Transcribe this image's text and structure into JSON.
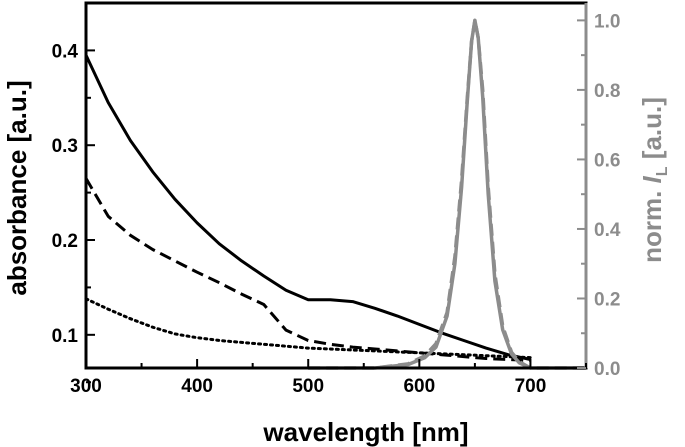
{
  "chart_data": {
    "type": "line",
    "x_axis": {
      "label": "wavelength [nm]",
      "range": [
        300,
        750
      ],
      "ticks": [
        300,
        400,
        500,
        600,
        700
      ],
      "tick_labels": [
        "300",
        "400",
        "500",
        "600",
        "700"
      ]
    },
    "y_axis_left": {
      "label": "absorbance [a.u.]",
      "range": [
        0.065,
        0.45
      ],
      "ticks": [
        0.1,
        0.2,
        0.3,
        0.4
      ],
      "tick_labels": [
        "0.1",
        "0.2",
        "0.3",
        "0.4"
      ],
      "color": "#000000"
    },
    "y_axis_right": {
      "label_main": "norm. ",
      "label_italic": "I",
      "label_subscript": "L",
      "label_tail": " [a.u.]",
      "range": [
        0.0,
        1.05
      ],
      "ticks": [
        0.0,
        0.2,
        0.4,
        0.6,
        0.8,
        1.0
      ],
      "tick_labels": [
        "0.0",
        "0.2",
        "0.4",
        "0.6",
        "0.8",
        "1.0"
      ],
      "color": "#8c8c8c"
    },
    "series": [
      {
        "axis": "left",
        "style": "solid",
        "color": "#000000",
        "x": [
          300,
          320,
          340,
          360,
          380,
          400,
          420,
          440,
          460,
          480,
          500,
          520,
          540,
          560,
          580,
          600,
          620,
          640,
          660,
          680,
          700
        ],
        "y": [
          0.395,
          0.345,
          0.305,
          0.272,
          0.243,
          0.218,
          0.196,
          0.178,
          0.162,
          0.147,
          0.137,
          0.137,
          0.135,
          0.128,
          0.12,
          0.111,
          0.102,
          0.094,
          0.086,
          0.079,
          0.074
        ]
      },
      {
        "axis": "left",
        "style": "dashed",
        "color": "#000000",
        "x": [
          300,
          320,
          340,
          360,
          380,
          400,
          420,
          440,
          460,
          480,
          500,
          520,
          540,
          560,
          580,
          600,
          620,
          640,
          660,
          680,
          700
        ],
        "y": [
          0.265,
          0.225,
          0.205,
          0.19,
          0.178,
          0.166,
          0.155,
          0.143,
          0.132,
          0.105,
          0.094,
          0.09,
          0.087,
          0.085,
          0.083,
          0.081,
          0.079,
          0.077,
          0.075,
          0.074,
          0.073
        ]
      },
      {
        "axis": "left",
        "style": "dotted",
        "color": "#000000",
        "x": [
          300,
          320,
          340,
          360,
          380,
          400,
          420,
          440,
          460,
          480,
          500,
          520,
          540,
          560,
          580,
          600,
          620,
          640,
          660,
          680,
          700
        ],
        "y": [
          0.138,
          0.127,
          0.117,
          0.108,
          0.101,
          0.097,
          0.094,
          0.092,
          0.09,
          0.088,
          0.086,
          0.085,
          0.084,
          0.083,
          0.082,
          0.081,
          0.08,
          0.079,
          0.078,
          0.077,
          0.076
        ]
      },
      {
        "axis": "right",
        "style": "solid",
        "color": "#8c8c8c",
        "x": [
          500,
          560,
          590,
          605,
          615,
          625,
          632,
          638,
          643,
          647,
          650,
          653,
          657,
          662,
          668,
          675,
          683,
          690,
          700,
          720,
          740,
          750
        ],
        "y": [
          0.0,
          0.0,
          0.01,
          0.03,
          0.06,
          0.15,
          0.3,
          0.52,
          0.76,
          0.94,
          1.0,
          0.95,
          0.78,
          0.5,
          0.25,
          0.11,
          0.04,
          0.015,
          0.0,
          0.0,
          0.0,
          0.0
        ]
      },
      {
        "axis": "right",
        "style": "dashed",
        "color": "#8c8c8c",
        "x": [
          500,
          560,
          590,
          605,
          615,
          625,
          632,
          638,
          643,
          647,
          650,
          653,
          657,
          662,
          668,
          675,
          683,
          690,
          700,
          720,
          740,
          750
        ],
        "y": [
          0.0,
          0.0,
          0.012,
          0.035,
          0.07,
          0.16,
          0.32,
          0.54,
          0.77,
          0.94,
          1.0,
          0.95,
          0.8,
          0.52,
          0.27,
          0.12,
          0.045,
          0.018,
          0.0,
          0.0,
          0.0,
          0.0
        ]
      }
    ]
  }
}
